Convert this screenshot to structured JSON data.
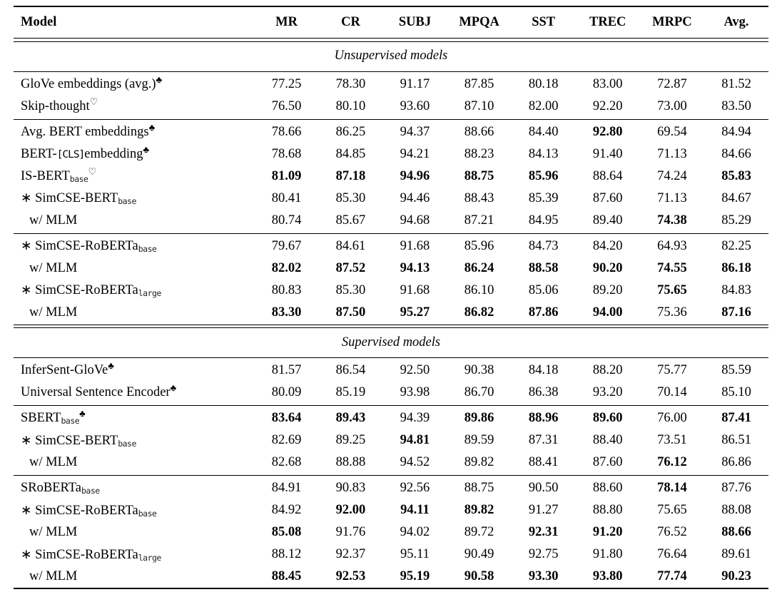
{
  "table": {
    "columns": [
      "Model",
      "MR",
      "CR",
      "SUBJ",
      "MPQA",
      "SST",
      "TREC",
      "MRPC",
      "Avg."
    ],
    "sections": [
      {
        "title": "Unsupervised models",
        "groups": [
          {
            "rows": [
              {
                "name": [
                  {
                    "t": "GloVe embeddings (avg.)"
                  },
                  {
                    "sup": "♣"
                  }
                ],
                "indent": false,
                "values": [
                  "77.25",
                  "78.30",
                  "91.17",
                  "87.85",
                  "80.18",
                  "83.00",
                  "72.87",
                  "81.52"
                ],
                "bold": [
                  0,
                  0,
                  0,
                  0,
                  0,
                  0,
                  0,
                  0
                ]
              },
              {
                "name": [
                  {
                    "t": "Skip-thought"
                  },
                  {
                    "sup": "♡"
                  }
                ],
                "indent": false,
                "values": [
                  "76.50",
                  "80.10",
                  "93.60",
                  "87.10",
                  "82.00",
                  "92.20",
                  "73.00",
                  "83.50"
                ],
                "bold": [
                  0,
                  0,
                  0,
                  0,
                  0,
                  0,
                  0,
                  0
                ]
              }
            ]
          },
          {
            "rows": [
              {
                "name": [
                  {
                    "t": "Avg. BERT embeddings"
                  },
                  {
                    "sup": "♣"
                  }
                ],
                "indent": false,
                "values": [
                  "78.66",
                  "86.25",
                  "94.37",
                  "88.66",
                  "84.40",
                  "92.80",
                  "69.54",
                  "84.94"
                ],
                "bold": [
                  0,
                  0,
                  0,
                  0,
                  0,
                  1,
                  0,
                  0
                ]
              },
              {
                "name": [
                  {
                    "t": "BERT-"
                  },
                  {
                    "mono": "[CLS]"
                  },
                  {
                    "t": "embedding"
                  },
                  {
                    "sup": "♣"
                  }
                ],
                "indent": false,
                "values": [
                  "78.68",
                  "84.85",
                  "94.21",
                  "88.23",
                  "84.13",
                  "91.40",
                  "71.13",
                  "84.66"
                ],
                "bold": [
                  0,
                  0,
                  0,
                  0,
                  0,
                  0,
                  0,
                  0
                ]
              },
              {
                "name": [
                  {
                    "t": "IS-BERT"
                  },
                  {
                    "sub": "base"
                  },
                  {
                    "sup": "♡"
                  }
                ],
                "indent": false,
                "values": [
                  "81.09",
                  "87.18",
                  "94.96",
                  "88.75",
                  "85.96",
                  "88.64",
                  "74.24",
                  "85.83"
                ],
                "bold": [
                  1,
                  1,
                  1,
                  1,
                  1,
                  0,
                  0,
                  1
                ]
              },
              {
                "name": [
                  {
                    "t": "∗ SimCSE-BERT"
                  },
                  {
                    "sub": "base"
                  }
                ],
                "indent": false,
                "values": [
                  "80.41",
                  "85.30",
                  "94.46",
                  "88.43",
                  "85.39",
                  "87.60",
                  "71.13",
                  "84.67"
                ],
                "bold": [
                  0,
                  0,
                  0,
                  0,
                  0,
                  0,
                  0,
                  0
                ]
              },
              {
                "name": [
                  {
                    "t": "w/ MLM"
                  }
                ],
                "indent": true,
                "values": [
                  "80.74",
                  "85.67",
                  "94.68",
                  "87.21",
                  "84.95",
                  "89.40",
                  "74.38",
                  "85.29"
                ],
                "bold": [
                  0,
                  0,
                  0,
                  0,
                  0,
                  0,
                  1,
                  0
                ]
              }
            ]
          },
          {
            "rows": [
              {
                "name": [
                  {
                    "t": "∗ SimCSE-RoBERTa"
                  },
                  {
                    "sub": "base"
                  }
                ],
                "indent": false,
                "values": [
                  "79.67",
                  "84.61",
                  "91.68",
                  "85.96",
                  "84.73",
                  "84.20",
                  "64.93",
                  "82.25"
                ],
                "bold": [
                  0,
                  0,
                  0,
                  0,
                  0,
                  0,
                  0,
                  0
                ]
              },
              {
                "name": [
                  {
                    "t": "w/ MLM"
                  }
                ],
                "indent": true,
                "values": [
                  "82.02",
                  "87.52",
                  "94.13",
                  "86.24",
                  "88.58",
                  "90.20",
                  "74.55",
                  "86.18"
                ],
                "bold": [
                  1,
                  1,
                  1,
                  1,
                  1,
                  1,
                  1,
                  1
                ]
              },
              {
                "name": [
                  {
                    "t": "∗ SimCSE-RoBERTa"
                  },
                  {
                    "sub": "large"
                  }
                ],
                "indent": false,
                "values": [
                  "80.83",
                  "85.30",
                  "91.68",
                  "86.10",
                  "85.06",
                  "89.20",
                  "75.65",
                  "84.83"
                ],
                "bold": [
                  0,
                  0,
                  0,
                  0,
                  0,
                  0,
                  1,
                  0
                ]
              },
              {
                "name": [
                  {
                    "t": "w/ MLM"
                  }
                ],
                "indent": true,
                "values": [
                  "83.30",
                  "87.50",
                  "95.27",
                  "86.82",
                  "87.86",
                  "94.00",
                  "75.36",
                  "87.16"
                ],
                "bold": [
                  1,
                  1,
                  1,
                  1,
                  1,
                  1,
                  0,
                  1
                ]
              }
            ]
          }
        ]
      },
      {
        "title": "Supervised models",
        "groups": [
          {
            "rows": [
              {
                "name": [
                  {
                    "t": "InferSent-GloVe"
                  },
                  {
                    "sup": "♣"
                  }
                ],
                "indent": false,
                "values": [
                  "81.57",
                  "86.54",
                  "92.50",
                  "90.38",
                  "84.18",
                  "88.20",
                  "75.77",
                  "85.59"
                ],
                "bold": [
                  0,
                  0,
                  0,
                  0,
                  0,
                  0,
                  0,
                  0
                ]
              },
              {
                "name": [
                  {
                    "t": "Universal Sentence Encoder"
                  },
                  {
                    "sup": "♣"
                  }
                ],
                "indent": false,
                "values": [
                  "80.09",
                  "85.19",
                  "93.98",
                  "86.70",
                  "86.38",
                  "93.20",
                  "70.14",
                  "85.10"
                ],
                "bold": [
                  0,
                  0,
                  0,
                  0,
                  0,
                  0,
                  0,
                  0
                ]
              }
            ]
          },
          {
            "rows": [
              {
                "name": [
                  {
                    "t": "SBERT"
                  },
                  {
                    "sub": "base"
                  },
                  {
                    "sup": "♣"
                  }
                ],
                "indent": false,
                "values": [
                  "83.64",
                  "89.43",
                  "94.39",
                  "89.86",
                  "88.96",
                  "89.60",
                  "76.00",
                  "87.41"
                ],
                "bold": [
                  1,
                  1,
                  0,
                  1,
                  1,
                  1,
                  0,
                  1
                ]
              },
              {
                "name": [
                  {
                    "t": "∗ SimCSE-BERT"
                  },
                  {
                    "sub": "base"
                  }
                ],
                "indent": false,
                "values": [
                  "82.69",
                  "89.25",
                  "94.81",
                  "89.59",
                  "87.31",
                  "88.40",
                  "73.51",
                  "86.51"
                ],
                "bold": [
                  0,
                  0,
                  1,
                  0,
                  0,
                  0,
                  0,
                  0
                ]
              },
              {
                "name": [
                  {
                    "t": "w/ MLM"
                  }
                ],
                "indent": true,
                "values": [
                  "82.68",
                  "88.88",
                  "94.52",
                  "89.82",
                  "88.41",
                  "87.60",
                  "76.12",
                  "86.86"
                ],
                "bold": [
                  0,
                  0,
                  0,
                  0,
                  0,
                  0,
                  1,
                  0
                ]
              }
            ]
          },
          {
            "rows": [
              {
                "name": [
                  {
                    "t": "SRoBERTa"
                  },
                  {
                    "sub": "base"
                  }
                ],
                "indent": false,
                "values": [
                  "84.91",
                  "90.83",
                  "92.56",
                  "88.75",
                  "90.50",
                  "88.60",
                  "78.14",
                  "87.76"
                ],
                "bold": [
                  0,
                  0,
                  0,
                  0,
                  0,
                  0,
                  1,
                  0
                ]
              },
              {
                "name": [
                  {
                    "t": "∗ SimCSE-RoBERTa"
                  },
                  {
                    "sub": "base"
                  }
                ],
                "indent": false,
                "values": [
                  "84.92",
                  "92.00",
                  "94.11",
                  "89.82",
                  "91.27",
                  "88.80",
                  "75.65",
                  "88.08"
                ],
                "bold": [
                  0,
                  1,
                  1,
                  1,
                  0,
                  0,
                  0,
                  0
                ]
              },
              {
                "name": [
                  {
                    "t": "w/ MLM"
                  }
                ],
                "indent": true,
                "values": [
                  "85.08",
                  "91.76",
                  "94.02",
                  "89.72",
                  "92.31",
                  "91.20",
                  "76.52",
                  "88.66"
                ],
                "bold": [
                  1,
                  0,
                  0,
                  0,
                  1,
                  1,
                  0,
                  1
                ]
              },
              {
                "name": [
                  {
                    "t": "∗ SimCSE-RoBERTa"
                  },
                  {
                    "sub": "large"
                  }
                ],
                "indent": false,
                "values": [
                  "88.12",
                  "92.37",
                  "95.11",
                  "90.49",
                  "92.75",
                  "91.80",
                  "76.64",
                  "89.61"
                ],
                "bold": [
                  0,
                  0,
                  0,
                  0,
                  0,
                  0,
                  0,
                  0
                ]
              },
              {
                "name": [
                  {
                    "t": "w/ MLM"
                  }
                ],
                "indent": true,
                "values": [
                  "88.45",
                  "92.53",
                  "95.19",
                  "90.58",
                  "93.30",
                  "93.80",
                  "77.74",
                  "90.23"
                ],
                "bold": [
                  1,
                  1,
                  1,
                  1,
                  1,
                  1,
                  1,
                  1
                ]
              }
            ]
          }
        ]
      }
    ]
  }
}
